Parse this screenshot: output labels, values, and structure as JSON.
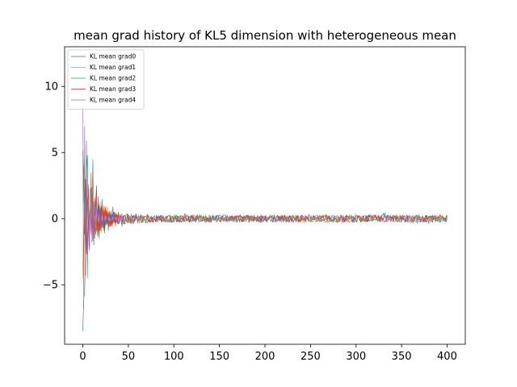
{
  "chart_data": {
    "type": "line",
    "title": "mean grad history of KL5 dimension with heterogeneous mean",
    "xlabel": "",
    "ylabel": "",
    "xlim": [
      -20,
      420
    ],
    "ylim": [
      -9.5,
      13
    ],
    "xticks": [
      0,
      50,
      100,
      150,
      200,
      250,
      300,
      350,
      400
    ],
    "yticks": [
      -5,
      0,
      5,
      10
    ],
    "ytick_labels": [
      "−5",
      "0",
      "5",
      "10"
    ],
    "legend_position": "top-left",
    "grid": false,
    "n_points": 401,
    "series": [
      {
        "name": "KL mean grad0",
        "color": "#1f77b4",
        "values": [
          -8.5,
          -6.0,
          -5.6,
          -2.2,
          3.4,
          4.8,
          -0.8,
          -2.4,
          1.4,
          3.1,
          -1.8,
          4.5,
          -2.0,
          1.6,
          -1.2,
          2.0,
          -0.9,
          1.7,
          -1.5,
          0.9,
          -0.8,
          1.5,
          -0.6,
          0.8,
          -1.1,
          0.8,
          -0.4,
          0.7,
          -0.9,
          0.6,
          -0.5,
          0.6,
          -0.4,
          0.9,
          -0.3,
          0.5,
          -0.6,
          0.4,
          -0.2,
          0.5
        ]
      },
      {
        "name": "KL mean grad1",
        "color": "#ff7f0e",
        "values": [
          -4.5,
          4.0,
          3.2,
          -3.5,
          1.8,
          -2.5,
          2.4,
          -1.5,
          0.8,
          3.5,
          -1.6,
          1.8,
          -1.2,
          0.9,
          -0.7,
          2.1,
          -1.4,
          0.6,
          -0.9,
          1.3,
          -1.1,
          0.7,
          -0.6,
          1.0,
          -0.8,
          0.6,
          -0.5,
          0.9,
          -0.6,
          0.5,
          -0.4,
          0.4,
          -0.6,
          0.5,
          -0.3,
          0.3,
          -0.5,
          0.4,
          -0.3,
          0.4
        ]
      },
      {
        "name": "KL mean grad2",
        "color": "#2ca02c",
        "values": [
          5.0,
          -3.8,
          2.2,
          -3.2,
          5.9,
          -4.5,
          2.6,
          -1.4,
          1.2,
          -0.9,
          2.2,
          -1.6,
          0.9,
          -1.1,
          1.4,
          -0.8,
          0.6,
          -1.3,
          1.0,
          -0.6,
          0.9,
          -0.7,
          0.5,
          -0.9,
          0.7,
          -0.5,
          0.6,
          -0.4,
          0.5,
          -0.6,
          0.4,
          -0.5,
          0.3,
          -0.4,
          0.5,
          -0.3,
          0.4,
          -0.3,
          0.3,
          -0.4
        ]
      },
      {
        "name": "KL mean grad3",
        "color": "#d62728",
        "values": [
          5.2,
          3.5,
          -1.2,
          3.0,
          -2.7,
          1.2,
          2.3,
          -2.1,
          1.6,
          -1.0,
          2.4,
          -1.3,
          0.9,
          -1.5,
          1.1,
          2.5,
          -0.9,
          1.2,
          -1.0,
          0.8,
          -0.9,
          1.1,
          -0.7,
          0.6,
          -0.8,
          0.9,
          -0.5,
          0.4,
          -0.7,
          0.5,
          -0.6,
          0.4,
          -0.5,
          0.4,
          -0.3,
          0.5,
          -0.4,
          0.3,
          -0.4,
          0.3
        ]
      },
      {
        "name": "KL mean grad4",
        "color": "#9467bd",
        "values": [
          10.0,
          -6.8,
          7.0,
          -4.3,
          3.3,
          -2.9,
          1.6,
          -1.8,
          2.3,
          -1.2,
          1.1,
          -1.7,
          1.3,
          -0.8,
          0.9,
          -1.0,
          0.7,
          -0.6,
          0.8,
          -0.9,
          0.5,
          -0.6,
          0.7,
          -0.4,
          0.5,
          -0.5,
          0.4,
          -0.3,
          0.5,
          -0.4,
          0.3,
          -0.4,
          0.3,
          -0.3,
          0.4,
          -0.3,
          0.3,
          -0.2,
          0.3,
          -0.3
        ]
      }
    ],
    "steady_state_amplitude": 0.28
  }
}
